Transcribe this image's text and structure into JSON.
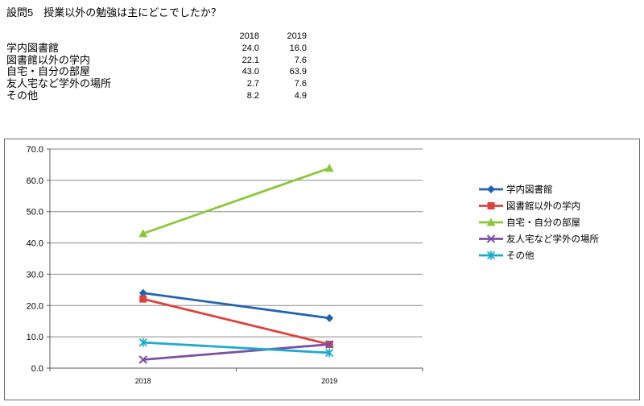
{
  "question": {
    "title": "設問5　授業以外の勉強は主にどこでしたか？"
  },
  "table": {
    "headers": [
      "2018",
      "2019"
    ],
    "rows": [
      {
        "label": "学内図書館",
        "values": [
          "24.0",
          "16.0"
        ]
      },
      {
        "label": "図書館以外の学内",
        "values": [
          "22.1",
          "7.6"
        ]
      },
      {
        "label": "自宅・自分の部屋",
        "values": [
          "43.0",
          "63.9"
        ]
      },
      {
        "label": "友人宅など学外の場所",
        "values": [
          "2.7",
          "7.6"
        ]
      },
      {
        "label": "その他",
        "values": [
          "8.2",
          "4.9"
        ]
      }
    ]
  },
  "chart_data": {
    "type": "line",
    "categories": [
      "2018",
      "2019"
    ],
    "series": [
      {
        "name": "学内図書館",
        "values": [
          24.0,
          16.0
        ],
        "color": "#2463AE",
        "marker": "diamond"
      },
      {
        "name": "図書館以外の学内",
        "values": [
          22.1,
          7.6
        ],
        "color": "#D9443F",
        "marker": "square"
      },
      {
        "name": "自宅・自分の部屋",
        "values": [
          43.0,
          63.9
        ],
        "color": "#8CC63F",
        "marker": "triangle"
      },
      {
        "name": "友人宅など学外の場所",
        "values": [
          2.7,
          7.6
        ],
        "color": "#7B4FA6",
        "marker": "x"
      },
      {
        "name": "その他",
        "values": [
          8.2,
          4.9
        ],
        "color": "#1EAACB",
        "marker": "asterisk"
      }
    ],
    "ylim": [
      0,
      70
    ],
    "y_ticks": [
      "0.0",
      "10.0",
      "20.0",
      "30.0",
      "40.0",
      "50.0",
      "60.0",
      "70.0"
    ],
    "grid": true,
    "legend": "right"
  }
}
